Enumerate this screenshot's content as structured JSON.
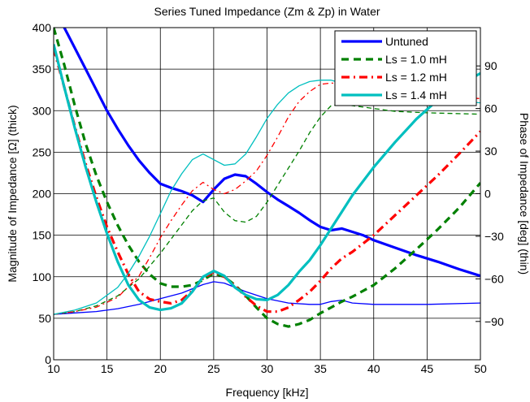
{
  "chart_data": {
    "type": "line",
    "title": "Series Tuned Impedance (Zm & Zp) in Water",
    "xlabel": "Frequency [kHz]",
    "ylabel_left": "Magnitude of Impedance [Ω] (thick)",
    "ylabel_right": "Phase of Impedance [deg] (thin)",
    "xlim": [
      10,
      50
    ],
    "ylim_left": [
      0,
      400
    ],
    "ylim_right": [
      -117,
      117
    ],
    "x_ticks": [
      "10",
      "15",
      "20",
      "25",
      "30",
      "35",
      "40",
      "45",
      "50"
    ],
    "y_ticks_left": [
      "0",
      "50",
      "100",
      "150",
      "200",
      "250",
      "300",
      "350",
      "400"
    ],
    "y_ticks_right": [
      "−90",
      "−60",
      "−30",
      "0",
      "30",
      "60",
      "90"
    ],
    "y_tick_values_right": [
      -90,
      -60,
      -30,
      0,
      30,
      60,
      90
    ],
    "grid": true,
    "legend_position": "top-right",
    "series": [
      {
        "name": "Untuned",
        "color": "#0000ff",
        "dash": "solid",
        "magnitude": {
          "x": [
            10,
            11,
            12,
            13,
            14,
            15,
            16,
            17,
            18,
            19,
            20,
            21,
            22,
            23,
            24,
            25,
            26,
            27,
            28,
            29,
            30,
            31,
            32,
            33,
            34,
            35,
            36,
            37,
            38,
            39,
            40,
            42,
            44,
            46,
            48,
            50
          ],
          "y": [
            420,
            400,
            375,
            350,
            325,
            300,
            278,
            258,
            240,
            225,
            212,
            207,
            203,
            198,
            190,
            205,
            218,
            223,
            221,
            212,
            202,
            193,
            185,
            177,
            168,
            160,
            156,
            158,
            154,
            150,
            144,
            135,
            126,
            118,
            109,
            101
          ]
        },
        "phase": {
          "x": [
            10,
            12,
            14,
            16,
            18,
            20,
            22,
            24,
            25,
            26,
            27,
            28,
            30,
            32,
            34,
            35,
            36,
            37,
            38,
            40,
            45,
            50
          ],
          "y": [
            -85,
            -84,
            -83,
            -81,
            -78,
            -74,
            -70,
            -64,
            -62,
            -63,
            -66,
            -69,
            -74,
            -77,
            -78,
            -78,
            -76,
            -75,
            -77,
            -78,
            -78,
            -77
          ]
        }
      },
      {
        "name": "Ls = 1.0 mH",
        "color": "#008000",
        "dash": "dashed",
        "magnitude": {
          "x": [
            10,
            11,
            12,
            13,
            14,
            15,
            16,
            17,
            18,
            19,
            20,
            21,
            22,
            23,
            24,
            25,
            26,
            27,
            28,
            29,
            30,
            31,
            32,
            33,
            34,
            35,
            36,
            37,
            38,
            40,
            42,
            44,
            46,
            48,
            50
          ],
          "y": [
            400,
            355,
            305,
            260,
            222,
            190,
            162,
            138,
            118,
            103,
            92,
            88,
            88,
            90,
            96,
            104,
            100,
            90,
            77,
            63,
            50,
            43,
            40,
            43,
            48,
            56,
            63,
            70,
            76,
            90,
            110,
            133,
            157,
            183,
            213
          ]
        },
        "phase": {
          "x": [
            10,
            12,
            14,
            16,
            18,
            20,
            21,
            22,
            23,
            24,
            25,
            26,
            27,
            28,
            29,
            30,
            31,
            32,
            33,
            34,
            35,
            36,
            37,
            38,
            40,
            42,
            45,
            50
          ],
          "y": [
            -85,
            -83,
            -79,
            -72,
            -60,
            -42,
            -32,
            -22,
            -12,
            -5,
            -3,
            -13,
            -19,
            -20,
            -16,
            -6,
            6,
            18,
            30,
            43,
            54,
            62,
            63,
            62,
            60,
            58,
            57,
            56
          ]
        }
      },
      {
        "name": "Ls = 1.2 mH",
        "color": "#ff0000",
        "dash": "dashdot",
        "magnitude": {
          "x": [
            10,
            11,
            12,
            13,
            14,
            15,
            16,
            17,
            18,
            19,
            20,
            21,
            22,
            23,
            24,
            25,
            26,
            27,
            28,
            29,
            30,
            31,
            32,
            33,
            34,
            35,
            36,
            37,
            38,
            40,
            42,
            44,
            46,
            48,
            50
          ],
          "y": [
            375,
            328,
            280,
            236,
            196,
            160,
            130,
            103,
            82,
            73,
            70,
            68,
            72,
            83,
            98,
            106,
            100,
            89,
            76,
            65,
            58,
            58,
            63,
            72,
            82,
            95,
            110,
            122,
            130,
            150,
            174,
            198,
            222,
            248,
            275
          ]
        },
        "phase": {
          "x": [
            10,
            12,
            14,
            16,
            18,
            19,
            20,
            21,
            22,
            23,
            24,
            25,
            26,
            27,
            28,
            29,
            30,
            31,
            32,
            33,
            34,
            35,
            36,
            37,
            38,
            40,
            45,
            50
          ],
          "y": [
            -85,
            -83,
            -80,
            -73,
            -58,
            -45,
            -31,
            -19,
            -8,
            2,
            8,
            3,
            0,
            3,
            9,
            16,
            27,
            40,
            54,
            65,
            72,
            77,
            78,
            77,
            75,
            72,
            69,
            67
          ]
        }
      },
      {
        "name": "Ls = 1.4 mH",
        "color": "#00bfbf",
        "dash": "solid",
        "magnitude": {
          "x": [
            10,
            11,
            12,
            13,
            14,
            15,
            16,
            17,
            18,
            19,
            20,
            21,
            22,
            23,
            24,
            25,
            26,
            27,
            28,
            29,
            30,
            31,
            32,
            33,
            34,
            35,
            36,
            37,
            38,
            40,
            42,
            44,
            46,
            48,
            50
          ],
          "y": [
            380,
            328,
            278,
            232,
            190,
            152,
            118,
            90,
            72,
            63,
            60,
            62,
            68,
            82,
            100,
            107,
            101,
            87,
            78,
            73,
            72,
            78,
            90,
            106,
            120,
            138,
            158,
            178,
            198,
            232,
            262,
            290,
            313,
            330,
            345
          ]
        },
        "phase": {
          "x": [
            10,
            12,
            14,
            16,
            17,
            18,
            19,
            20,
            21,
            22,
            23,
            24,
            25,
            26,
            27,
            28,
            29,
            30,
            31,
            32,
            33,
            34,
            35,
            36,
            37,
            38,
            40,
            45,
            50
          ],
          "y": [
            -85,
            -82,
            -77,
            -66,
            -56,
            -44,
            -30,
            -14,
            2,
            14,
            24,
            28,
            24,
            20,
            21,
            28,
            40,
            53,
            63,
            71,
            76,
            79,
            80,
            80,
            78,
            75,
            71,
            67,
            64
          ]
        }
      }
    ]
  }
}
